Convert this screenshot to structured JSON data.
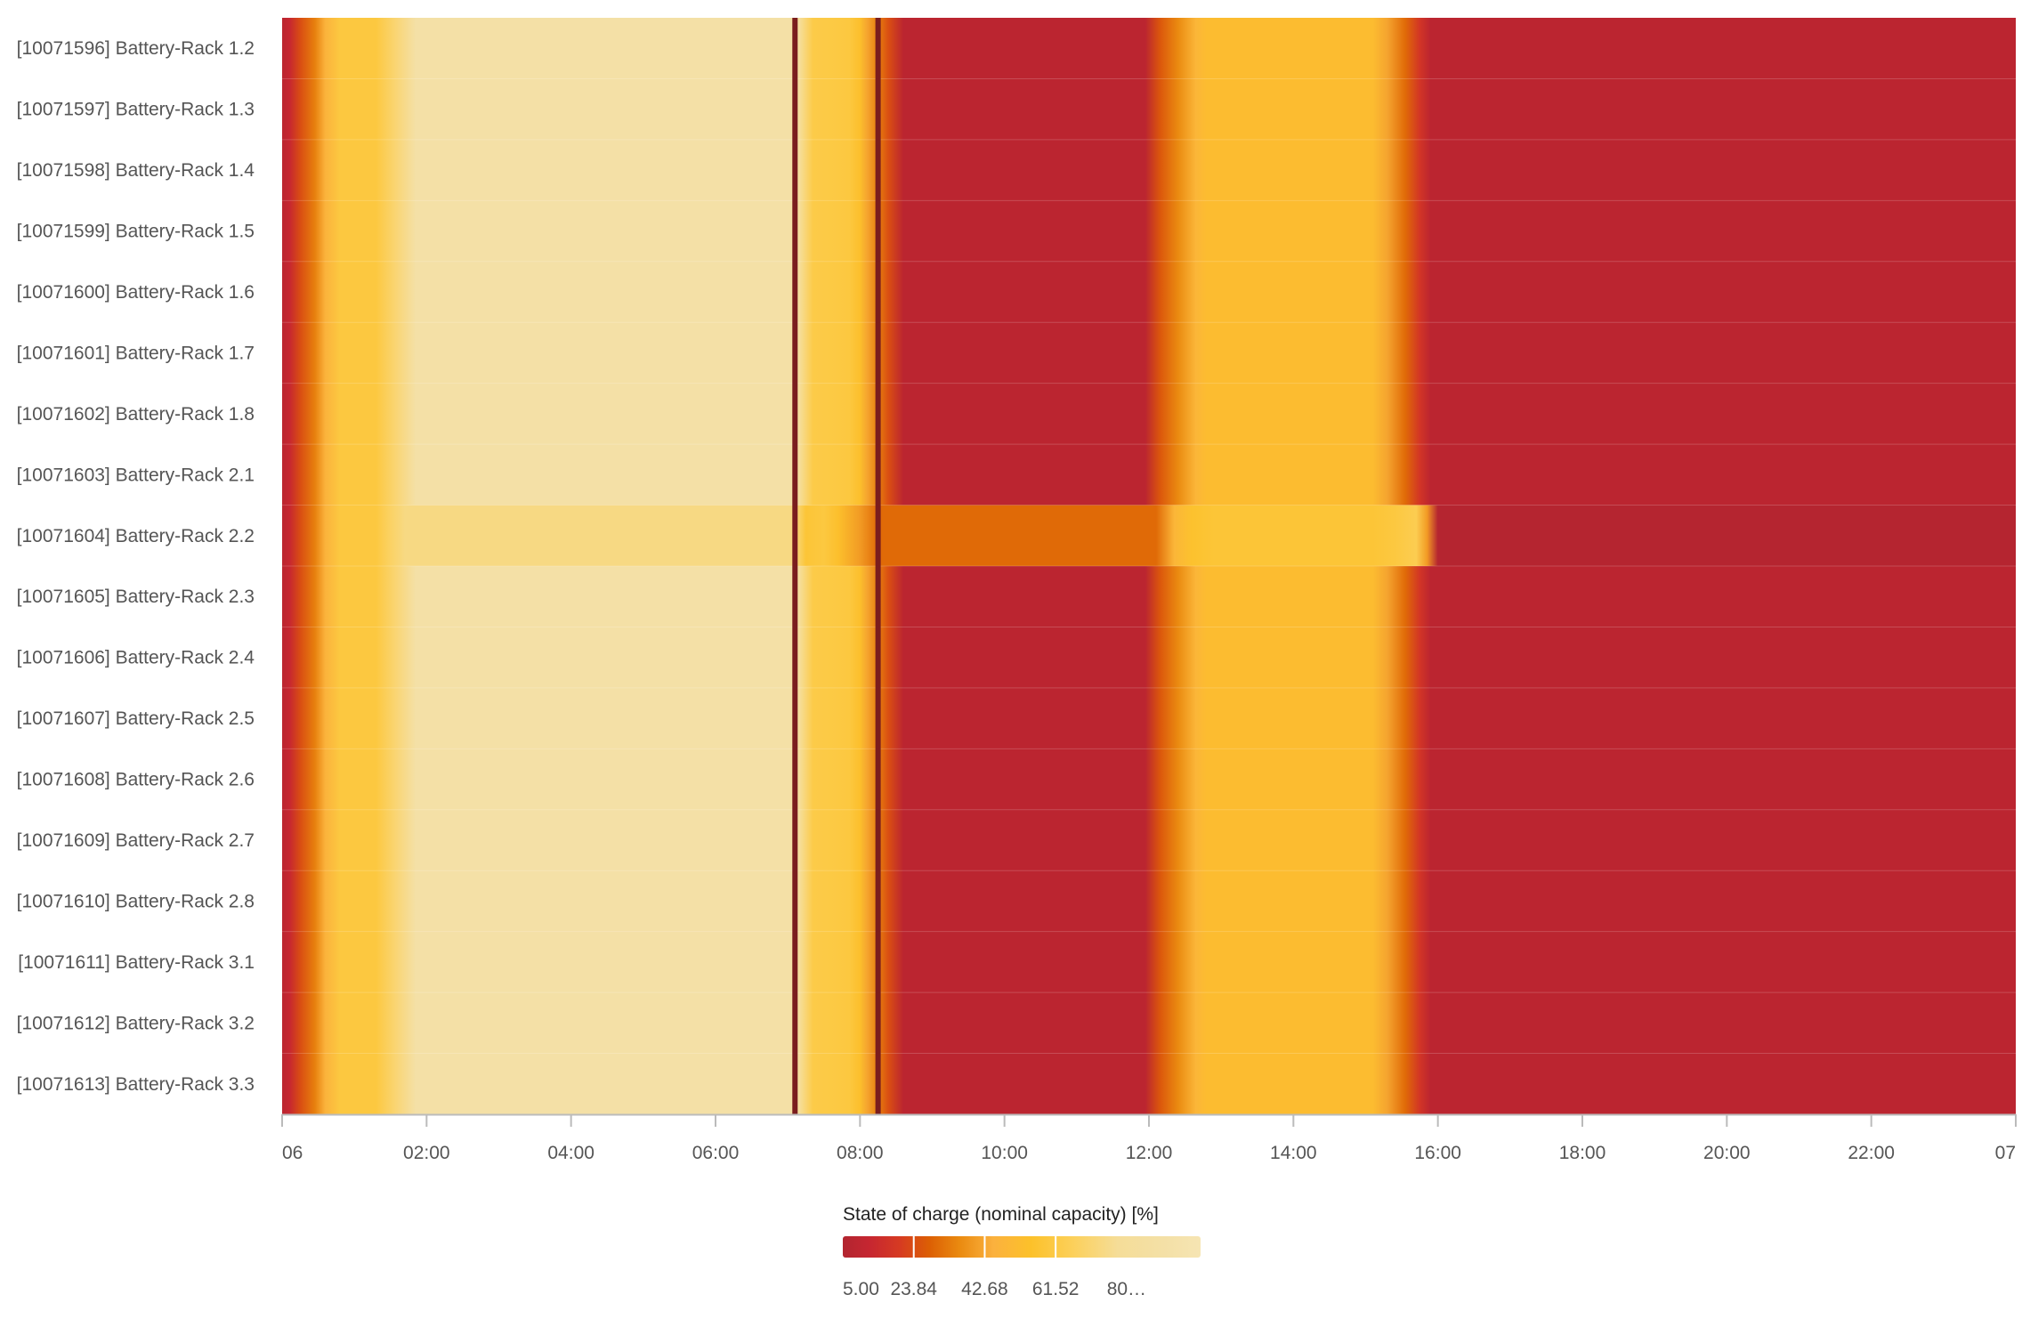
{
  "chart_data": {
    "type": "heatmap",
    "title": "",
    "xlabel": "",
    "ylabel": "",
    "x_range_hours": [
      0,
      24
    ],
    "x_ticks": [
      {
        "h": 0,
        "label": "06"
      },
      {
        "h": 2,
        "label": "02:00"
      },
      {
        "h": 4,
        "label": "04:00"
      },
      {
        "h": 6,
        "label": "06:00"
      },
      {
        "h": 8,
        "label": "08:00"
      },
      {
        "h": 10,
        "label": "10:00"
      },
      {
        "h": 12,
        "label": "12:00"
      },
      {
        "h": 14,
        "label": "14:00"
      },
      {
        "h": 16,
        "label": "16:00"
      },
      {
        "h": 18,
        "label": "18:00"
      },
      {
        "h": 20,
        "label": "20:00"
      },
      {
        "h": 22,
        "label": "22:00"
      },
      {
        "h": 24,
        "label": "07"
      }
    ],
    "rows": [
      "[10071596] Battery-Rack 1.2",
      "[10071597] Battery-Rack 1.3",
      "[10071598] Battery-Rack 1.4",
      "[10071599] Battery-Rack 1.5",
      "[10071600] Battery-Rack 1.6",
      "[10071601] Battery-Rack 1.7",
      "[10071602] Battery-Rack 1.8",
      "[10071603] Battery-Rack 2.1",
      "[10071604] Battery-Rack 2.2",
      "[10071605] Battery-Rack 2.3",
      "[10071606] Battery-Rack 2.4",
      "[10071607] Battery-Rack 2.5",
      "[10071608] Battery-Rack 2.6",
      "[10071609] Battery-Rack 2.7",
      "[10071610] Battery-Rack 2.8",
      "[10071611] Battery-Rack 3.1",
      "[10071612] Battery-Rack 3.2",
      "[10071613] Battery-Rack 3.3"
    ],
    "typical_profile": [
      [
        0.0,
        8
      ],
      [
        0.1,
        12
      ],
      [
        0.25,
        24
      ],
      [
        0.45,
        34
      ],
      [
        0.6,
        46
      ],
      [
        0.8,
        60
      ],
      [
        1.3,
        60
      ],
      [
        1.55,
        70
      ],
      [
        1.85,
        90
      ],
      [
        7.1,
        90
      ],
      [
        7.15,
        84
      ],
      [
        7.35,
        62
      ],
      [
        7.85,
        60
      ],
      [
        8.0,
        54
      ],
      [
        8.1,
        42
      ],
      [
        8.25,
        34
      ],
      [
        8.4,
        24
      ],
      [
        8.6,
        8
      ],
      [
        11.95,
        8
      ],
      [
        12.15,
        26
      ],
      [
        12.4,
        36
      ],
      [
        12.65,
        48
      ],
      [
        12.8,
        52
      ],
      [
        15.1,
        52
      ],
      [
        15.3,
        42
      ],
      [
        15.55,
        30
      ],
      [
        15.75,
        18
      ],
      [
        15.9,
        8
      ],
      [
        24.0,
        8
      ]
    ],
    "special_row": {
      "name": "[10071604] Battery-Rack 2.2",
      "profile": [
        [
          0.0,
          8
        ],
        [
          0.1,
          12
        ],
        [
          0.25,
          24
        ],
        [
          0.45,
          34
        ],
        [
          0.6,
          46
        ],
        [
          0.8,
          60
        ],
        [
          1.3,
          60
        ],
        [
          1.5,
          68
        ],
        [
          1.7,
          74
        ],
        [
          7.1,
          74
        ],
        [
          7.25,
          58
        ],
        [
          7.5,
          60
        ],
        [
          7.7,
          54
        ],
        [
          8.0,
          40
        ],
        [
          8.25,
          30
        ],
        [
          12.1,
          30
        ],
        [
          12.35,
          48
        ],
        [
          12.6,
          56
        ],
        [
          12.9,
          58
        ],
        [
          15.1,
          58
        ],
        [
          15.4,
          60
        ],
        [
          15.7,
          64
        ],
        [
          15.85,
          40
        ],
        [
          16.0,
          6
        ],
        [
          24.0,
          6
        ]
      ]
    },
    "markers_hours": [
      7.1,
      8.25
    ],
    "color_scale": {
      "title": "State of charge (nominal capacity) [%]",
      "min": 5,
      "max": 100,
      "stops": [
        [
          5,
          "#b22530"
        ],
        [
          12,
          "#c62631"
        ],
        [
          20,
          "#d63a22"
        ],
        [
          28,
          "#dc5f04"
        ],
        [
          36,
          "#ea8a10"
        ],
        [
          45,
          "#fbb13e"
        ],
        [
          55,
          "#fcc12a"
        ],
        [
          66,
          "#fcd05a"
        ],
        [
          78,
          "#f5dd98"
        ],
        [
          90,
          "#f4e0a6"
        ],
        [
          100,
          "#f6e5b3"
        ]
      ],
      "tick_labels": [
        "5.00",
        "23.84",
        "42.68",
        "61.52",
        "80…"
      ],
      "tick_values": [
        5,
        23.84,
        42.68,
        61.52,
        80.36
      ],
      "separators": [
        23.84,
        42.68,
        61.52
      ],
      "marker_color": "#7a1d1e",
      "special_row_tint": "#a02a2f"
    }
  }
}
